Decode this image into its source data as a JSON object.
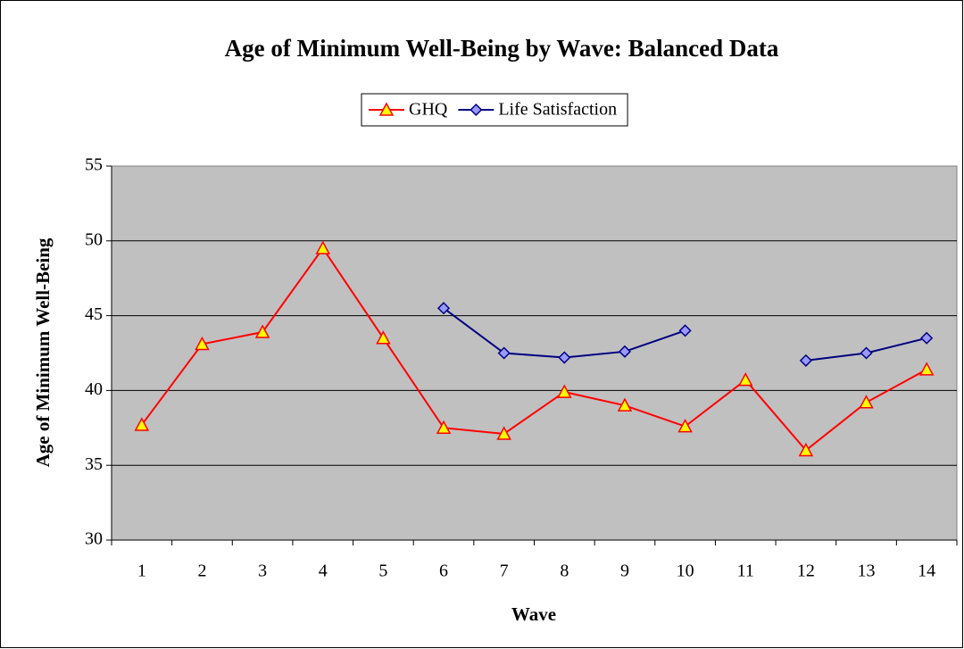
{
  "chart_data": {
    "type": "line",
    "title": "Age of Minimum Well-Being by Wave: Balanced Data",
    "x_label": "Wave",
    "y_label": "Age of Minimum Well-Being",
    "categories": [
      "1",
      "2",
      "3",
      "4",
      "5",
      "6",
      "7",
      "8",
      "9",
      "10",
      "11",
      "12",
      "13",
      "14"
    ],
    "series": [
      {
        "name": "GHQ",
        "color": "#ff0000",
        "marker": "triangle",
        "marker_fill": "#ffff00",
        "values": [
          37.7,
          43.1,
          43.9,
          49.5,
          43.5,
          37.5,
          37.1,
          39.9,
          39.0,
          37.6,
          40.7,
          36.0,
          39.2,
          41.4
        ]
      },
      {
        "name": "Life Satisfaction",
        "color": "#000080",
        "marker": "diamond",
        "marker_fill": "#9999ff",
        "values": [
          null,
          null,
          null,
          null,
          null,
          45.5,
          42.5,
          42.2,
          42.6,
          44.0,
          null,
          42.0,
          42.5,
          43.5
        ]
      }
    ],
    "ylim": [
      30,
      55
    ],
    "yticks": [
      30,
      35,
      40,
      45,
      50,
      55
    ],
    "grid": true,
    "plot_background": "#c0c0c0",
    "legend": "top"
  }
}
